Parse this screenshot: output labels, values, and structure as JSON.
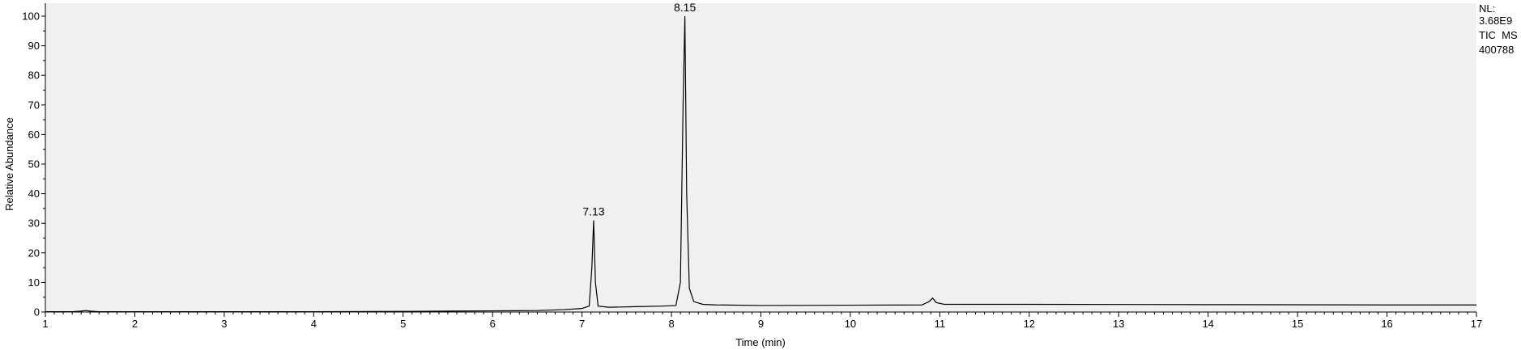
{
  "chart_data": {
    "type": "line",
    "xlabel": "Time (min)",
    "ylabel": "Relative Abundance",
    "xlim": [
      1,
      17
    ],
    "ylim": [
      0,
      100
    ],
    "x_ticks": [
      1,
      2,
      3,
      4,
      5,
      6,
      7,
      8,
      9,
      10,
      11,
      12,
      13,
      14,
      15,
      16,
      17
    ],
    "y_ticks": [
      0,
      10,
      20,
      30,
      40,
      50,
      60,
      70,
      80,
      90,
      100
    ],
    "grid": false,
    "plot_background": "#f0f0f0",
    "line_color": "#000000",
    "series": [
      {
        "x": [
          1.0,
          1.3,
          1.4,
          1.45,
          1.5,
          1.6,
          2.0,
          3.0,
          4.0,
          5.0,
          5.5,
          6.0,
          6.5,
          6.8,
          7.0,
          7.08,
          7.11,
          7.13,
          7.15,
          7.18,
          7.3,
          7.6,
          7.9,
          8.05,
          8.1,
          8.13,
          8.15,
          8.17,
          8.2,
          8.25,
          8.35,
          8.5,
          9.0,
          10.0,
          10.8,
          10.88,
          10.92,
          10.96,
          11.05,
          12.0,
          14.0,
          16.0,
          17.0
        ],
        "y": [
          0.1,
          0.1,
          0.3,
          0.5,
          0.3,
          0.1,
          0.1,
          0.1,
          0.1,
          0.2,
          0.3,
          0.4,
          0.5,
          0.8,
          1.2,
          2.0,
          15.0,
          31.0,
          10.0,
          2.0,
          1.6,
          1.8,
          2.0,
          2.2,
          10.0,
          70.0,
          100.0,
          40.0,
          8.0,
          3.5,
          2.6,
          2.4,
          2.2,
          2.3,
          2.4,
          3.5,
          4.7,
          3.2,
          2.6,
          2.6,
          2.5,
          2.4,
          2.4
        ]
      }
    ],
    "annotations": [
      {
        "x": 7.13,
        "y": 31.0,
        "text": "7.13"
      },
      {
        "x": 8.15,
        "y": 100.0,
        "text": "8.15"
      }
    ]
  },
  "info": {
    "line1": "NL:",
    "line2": "3.68E9",
    "line3": "TIC  MS",
    "line4": "400788"
  }
}
